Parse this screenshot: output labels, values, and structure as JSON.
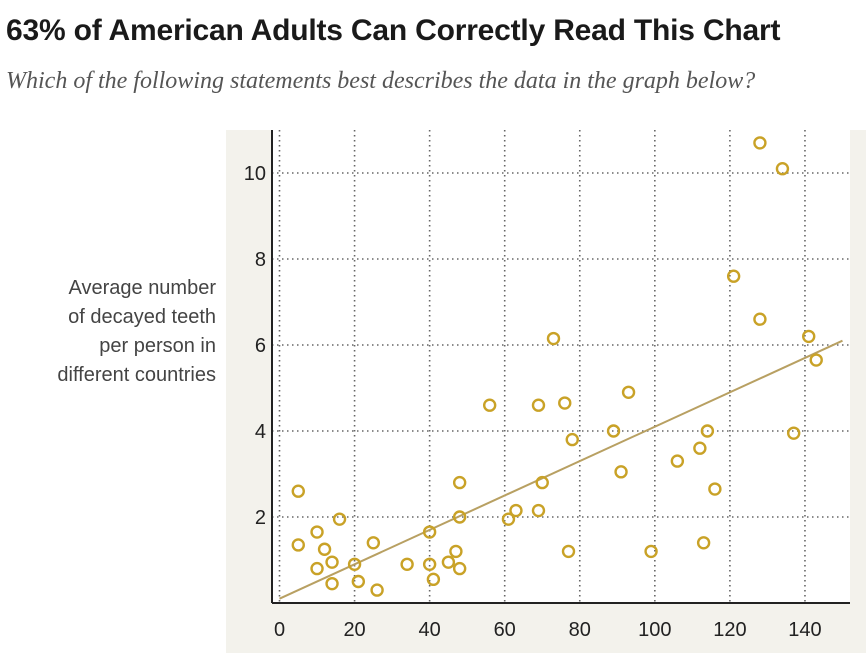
{
  "header": {
    "title": "63% of American Adults Can Correctly Read This Chart",
    "subtitle": "Which of the following statements best describes the data in the graph below?"
  },
  "chart_data": {
    "type": "scatter",
    "title": "",
    "ylabel_lines": [
      "Average number",
      "of decayed teeth",
      "per person in",
      "different countries"
    ],
    "xlabel": "",
    "xlim": [
      -2,
      152
    ],
    "ylim": [
      0,
      11
    ],
    "xticks": [
      0,
      20,
      40,
      60,
      80,
      100,
      120,
      140
    ],
    "yticks": [
      2,
      4,
      6,
      8,
      10
    ],
    "xgrid": [
      0,
      20,
      40,
      60,
      80,
      100,
      120,
      140
    ],
    "ygrid": [
      2,
      4,
      6,
      8,
      10
    ],
    "grid": "dotted",
    "colors": {
      "point": "#c9a227",
      "trend": "#b8a062",
      "axis": "#222222",
      "grid": "#666666",
      "plot_bg": "#ffffff",
      "panel_bg": "#f3f2ec"
    },
    "trendline": {
      "x": [
        0,
        150
      ],
      "y": [
        0.1,
        6.1
      ]
    },
    "points": [
      [
        5,
        2.6
      ],
      [
        5,
        1.35
      ],
      [
        10,
        0.8
      ],
      [
        10,
        1.65
      ],
      [
        12,
        1.25
      ],
      [
        14,
        0.45
      ],
      [
        14,
        0.95
      ],
      [
        16,
        1.95
      ],
      [
        20,
        0.9
      ],
      [
        21,
        0.5
      ],
      [
        25,
        1.4
      ],
      [
        26,
        0.3
      ],
      [
        34,
        0.9
      ],
      [
        40,
        0.9
      ],
      [
        40,
        1.65
      ],
      [
        41,
        0.55
      ],
      [
        45,
        0.95
      ],
      [
        47,
        1.2
      ],
      [
        48,
        0.8
      ],
      [
        48,
        2.0
      ],
      [
        48,
        2.8
      ],
      [
        56,
        4.6
      ],
      [
        61,
        1.95
      ],
      [
        63,
        2.15
      ],
      [
        69,
        4.6
      ],
      [
        69,
        2.15
      ],
      [
        70,
        2.8
      ],
      [
        73,
        6.15
      ],
      [
        76,
        4.65
      ],
      [
        77,
        1.2
      ],
      [
        78,
        3.8
      ],
      [
        89,
        4.0
      ],
      [
        91,
        3.05
      ],
      [
        93,
        4.9
      ],
      [
        99,
        1.2
      ],
      [
        106,
        3.3
      ],
      [
        112,
        3.6
      ],
      [
        113,
        1.4
      ],
      [
        114,
        4.0
      ],
      [
        116,
        2.65
      ],
      [
        121,
        7.6
      ],
      [
        128,
        10.7
      ],
      [
        128,
        6.6
      ],
      [
        134,
        10.1
      ],
      [
        137,
        3.95
      ],
      [
        141,
        6.2
      ],
      [
        143,
        5.65
      ]
    ]
  }
}
